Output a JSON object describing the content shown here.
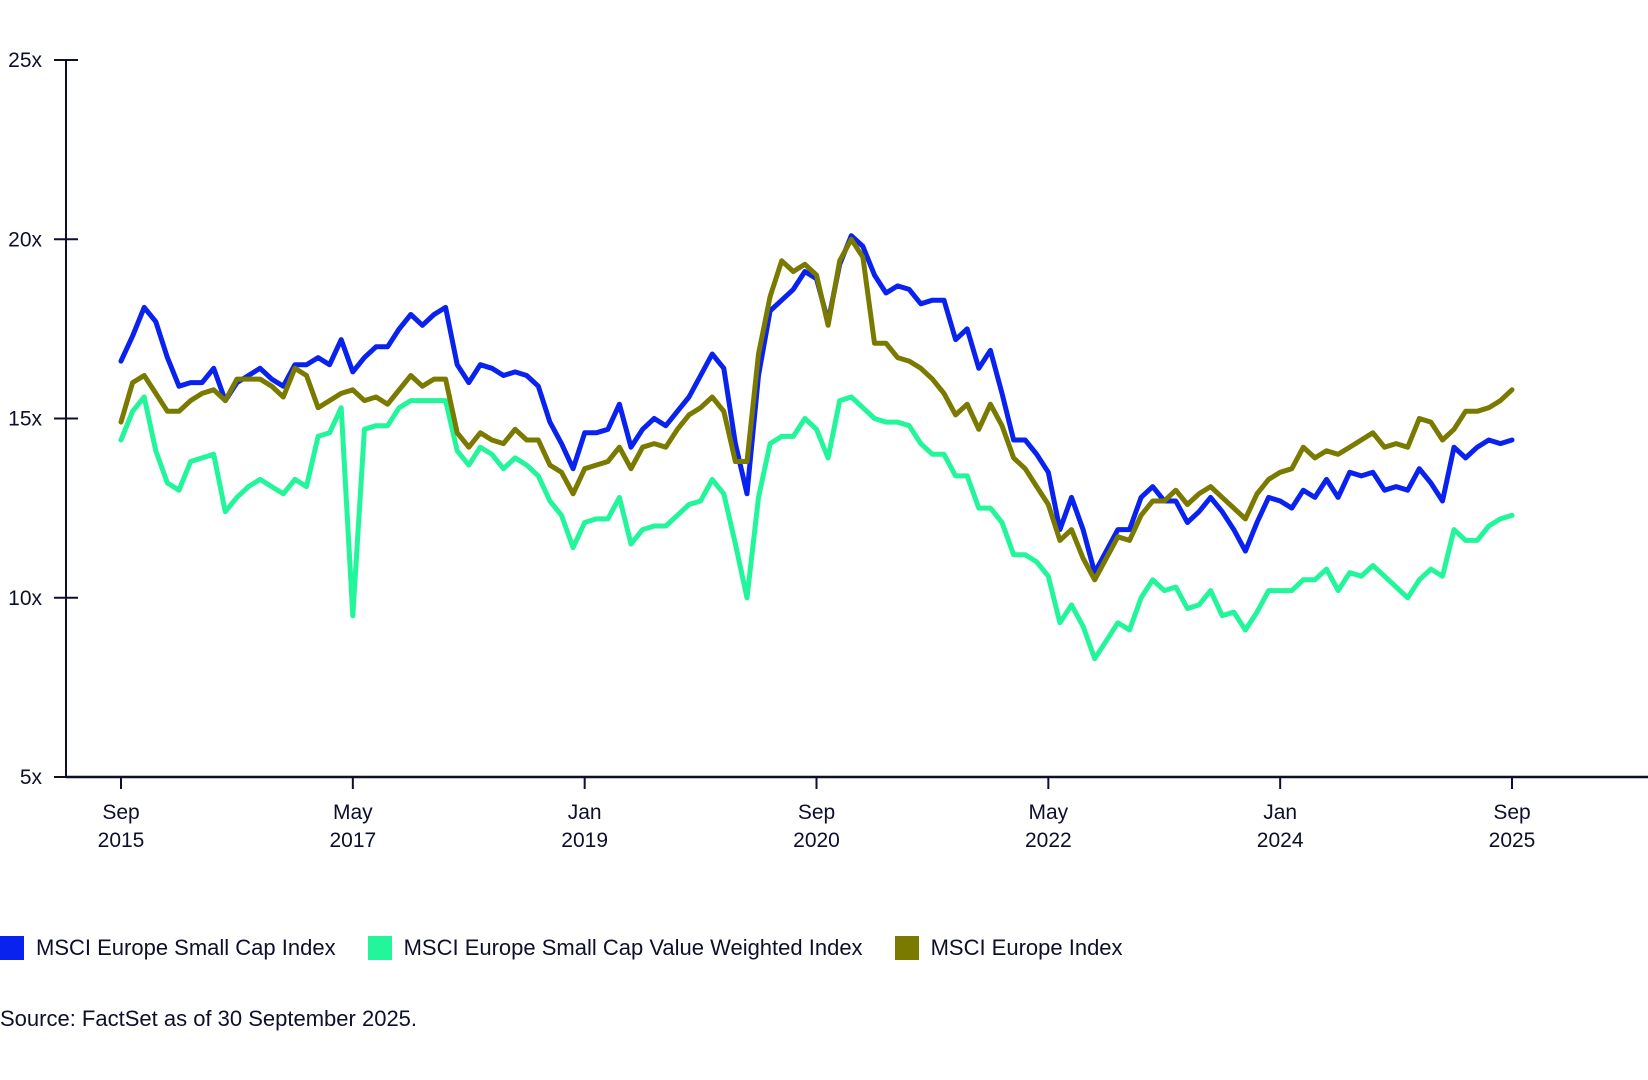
{
  "chart_data": {
    "type": "line",
    "title": "",
    "xlabel": "",
    "ylabel": "",
    "ylim": [
      5,
      25
    ],
    "yticks": [
      "25x",
      "20x",
      "15x",
      "10x",
      "5x"
    ],
    "ytick_values": [
      25,
      20,
      15,
      10,
      5
    ],
    "xticks": [
      {
        "month": "Sep",
        "year": "2015",
        "index": 0
      },
      {
        "month": "May",
        "year": "2017",
        "index": 20
      },
      {
        "month": "Jan",
        "year": "2019",
        "index": 40
      },
      {
        "month": "Sep",
        "year": "2020",
        "index": 60
      },
      {
        "month": "May",
        "year": "2022",
        "index": 80
      },
      {
        "month": "Jan",
        "year": "2024",
        "index": 100
      },
      {
        "month": "Sep",
        "year": "2025",
        "index": 120
      }
    ],
    "x_range": [
      "Sep 2015",
      "Sep 2025"
    ],
    "x_frequency": "monthly",
    "grid": false,
    "legend_position": "bottom-left",
    "series": [
      {
        "name": "MSCI Europe Small Cap Index",
        "color": "#0a22ee",
        "values": [
          16.6,
          17.3,
          18.1,
          17.7,
          16.7,
          15.9,
          16.0,
          16.0,
          16.4,
          15.5,
          16.0,
          16.2,
          16.4,
          16.1,
          15.9,
          16.5,
          16.5,
          16.7,
          16.5,
          17.2,
          16.3,
          16.7,
          17.0,
          17.0,
          17.5,
          17.9,
          17.6,
          17.9,
          18.1,
          16.5,
          16.0,
          16.5,
          16.4,
          16.2,
          16.3,
          16.2,
          15.9,
          14.9,
          14.3,
          13.6,
          14.6,
          14.6,
          14.7,
          15.4,
          14.2,
          14.7,
          15.0,
          14.8,
          15.2,
          15.6,
          16.2,
          16.8,
          16.4,
          14.3,
          12.9,
          16.2,
          18.0,
          18.3,
          18.6,
          19.1,
          18.9,
          17.7,
          19.3,
          20.1,
          19.8,
          19.0,
          18.5,
          18.7,
          18.6,
          18.2,
          18.3,
          18.3,
          17.2,
          17.5,
          16.4,
          16.9,
          15.7,
          14.4,
          14.4,
          14.0,
          13.5,
          11.9,
          12.8,
          11.9,
          10.7,
          11.3,
          11.9,
          11.9,
          12.8,
          13.1,
          12.7,
          12.7,
          12.1,
          12.4,
          12.8,
          12.4,
          11.9,
          11.3,
          12.1,
          12.8,
          12.7,
          12.5,
          13.0,
          12.8,
          13.3,
          12.8,
          13.5,
          13.4,
          13.5,
          13.0,
          13.1,
          13.0,
          13.6,
          13.2,
          12.7,
          14.2,
          13.9,
          14.2,
          14.4,
          14.3,
          14.4
        ]
      },
      {
        "name": "MSCI Europe Small Cap Value Weighted Index",
        "color": "#22f59a",
        "values": [
          14.4,
          15.2,
          15.6,
          14.1,
          13.2,
          13.0,
          13.8,
          13.9,
          14.0,
          12.4,
          12.8,
          13.1,
          13.3,
          13.1,
          12.9,
          13.3,
          13.1,
          14.5,
          14.6,
          15.3,
          9.5,
          14.7,
          14.8,
          14.8,
          15.3,
          15.5,
          15.5,
          15.5,
          15.5,
          14.1,
          13.7,
          14.2,
          14.0,
          13.6,
          13.9,
          13.7,
          13.4,
          12.7,
          12.3,
          11.4,
          12.1,
          12.2,
          12.2,
          12.8,
          11.5,
          11.9,
          12.0,
          12.0,
          12.3,
          12.6,
          12.7,
          13.3,
          12.9,
          11.5,
          10.0,
          12.8,
          14.3,
          14.5,
          14.5,
          15.0,
          14.7,
          13.9,
          15.5,
          15.6,
          15.3,
          15.0,
          14.9,
          14.9,
          14.8,
          14.3,
          14.0,
          14.0,
          13.4,
          13.4,
          12.5,
          12.5,
          12.1,
          11.2,
          11.2,
          11.0,
          10.6,
          9.3,
          9.8,
          9.2,
          8.3,
          8.8,
          9.3,
          9.1,
          10.0,
          10.5,
          10.2,
          10.3,
          9.7,
          9.8,
          10.2,
          9.5,
          9.6,
          9.1,
          9.6,
          10.2,
          10.2,
          10.2,
          10.5,
          10.5,
          10.8,
          10.2,
          10.7,
          10.6,
          10.9,
          10.6,
          10.3,
          10.0,
          10.5,
          10.8,
          10.6,
          11.9,
          11.6,
          11.6,
          12.0,
          12.2,
          12.3
        ]
      },
      {
        "name": "MSCI Europe Index",
        "color": "#7a7a00",
        "values": [
          14.9,
          16.0,
          16.2,
          15.7,
          15.2,
          15.2,
          15.5,
          15.7,
          15.8,
          15.5,
          16.1,
          16.1,
          16.1,
          15.9,
          15.6,
          16.4,
          16.2,
          15.3,
          15.5,
          15.7,
          15.8,
          15.5,
          15.6,
          15.4,
          15.8,
          16.2,
          15.9,
          16.1,
          16.1,
          14.6,
          14.2,
          14.6,
          14.4,
          14.3,
          14.7,
          14.4,
          14.4,
          13.7,
          13.5,
          12.9,
          13.6,
          13.7,
          13.8,
          14.2,
          13.6,
          14.2,
          14.3,
          14.2,
          14.7,
          15.1,
          15.3,
          15.6,
          15.2,
          13.8,
          13.8,
          16.8,
          18.4,
          19.4,
          19.1,
          19.3,
          19.0,
          17.6,
          19.4,
          20.0,
          19.5,
          17.1,
          17.1,
          16.7,
          16.6,
          16.4,
          16.1,
          15.7,
          15.1,
          15.4,
          14.7,
          15.4,
          14.8,
          13.9,
          13.6,
          13.1,
          12.6,
          11.6,
          11.9,
          11.1,
          10.5,
          11.1,
          11.7,
          11.6,
          12.3,
          12.7,
          12.7,
          13.0,
          12.6,
          12.9,
          13.1,
          12.8,
          12.5,
          12.2,
          12.9,
          13.3,
          13.5,
          13.6,
          14.2,
          13.9,
          14.1,
          14.0,
          14.2,
          14.4,
          14.6,
          14.2,
          14.3,
          14.2,
          15.0,
          14.9,
          14.4,
          14.7,
          15.2,
          15.2,
          15.3,
          15.5,
          15.8
        ]
      }
    ]
  },
  "legend": {
    "items": [
      {
        "label": "MSCI Europe Small Cap Index",
        "color": "#0a22ee"
      },
      {
        "label": "MSCI Europe Small Cap Value Weighted Index",
        "color": "#22f59a"
      },
      {
        "label": "MSCI Europe Index",
        "color": "#7a7a00"
      }
    ]
  },
  "source": "Source: FactSet as of 30 September 2025."
}
